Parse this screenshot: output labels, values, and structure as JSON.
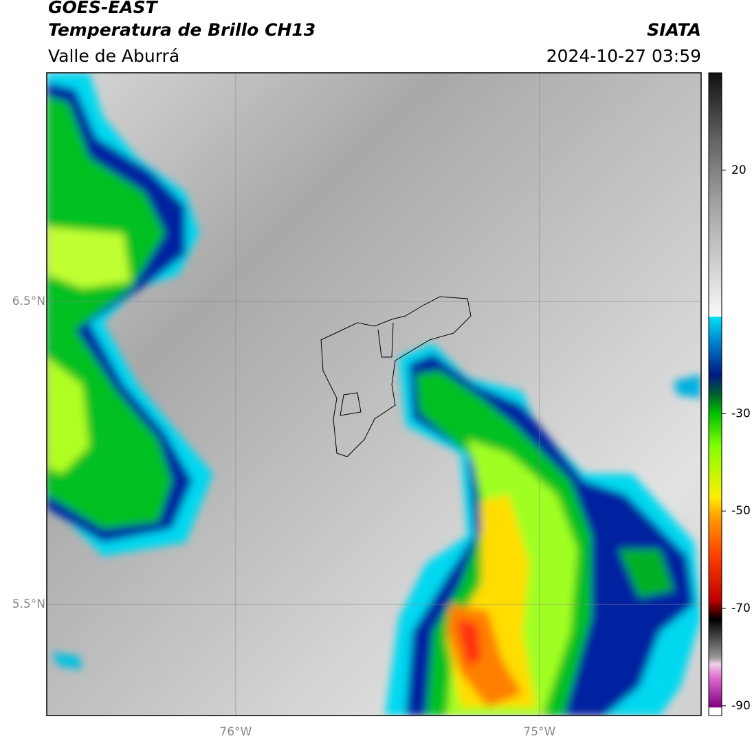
{
  "header": {
    "title": "GOES-EAST",
    "subtitle": "Temperatura de Brillo CH13",
    "region": "Valle de Aburrá",
    "source": "SIATA",
    "datetime": "2024-10-27 03:59"
  },
  "map": {
    "xlim": [
      -76.622,
      -74.468
    ],
    "ylim": [
      5.133,
      7.255
    ],
    "xticks": [
      {
        "value": -76,
        "label": "76°W"
      },
      {
        "value": -75,
        "label": "75°W"
      }
    ],
    "yticks": [
      {
        "value": 6.5,
        "label": "6.5°N"
      },
      {
        "value": 5.5,
        "label": "5.5°N"
      }
    ],
    "grid": true
  },
  "colorbar": {
    "lim": [
      -92,
      40
    ],
    "ticks": [
      20,
      -30,
      -50,
      -70,
      -90
    ]
  }
}
